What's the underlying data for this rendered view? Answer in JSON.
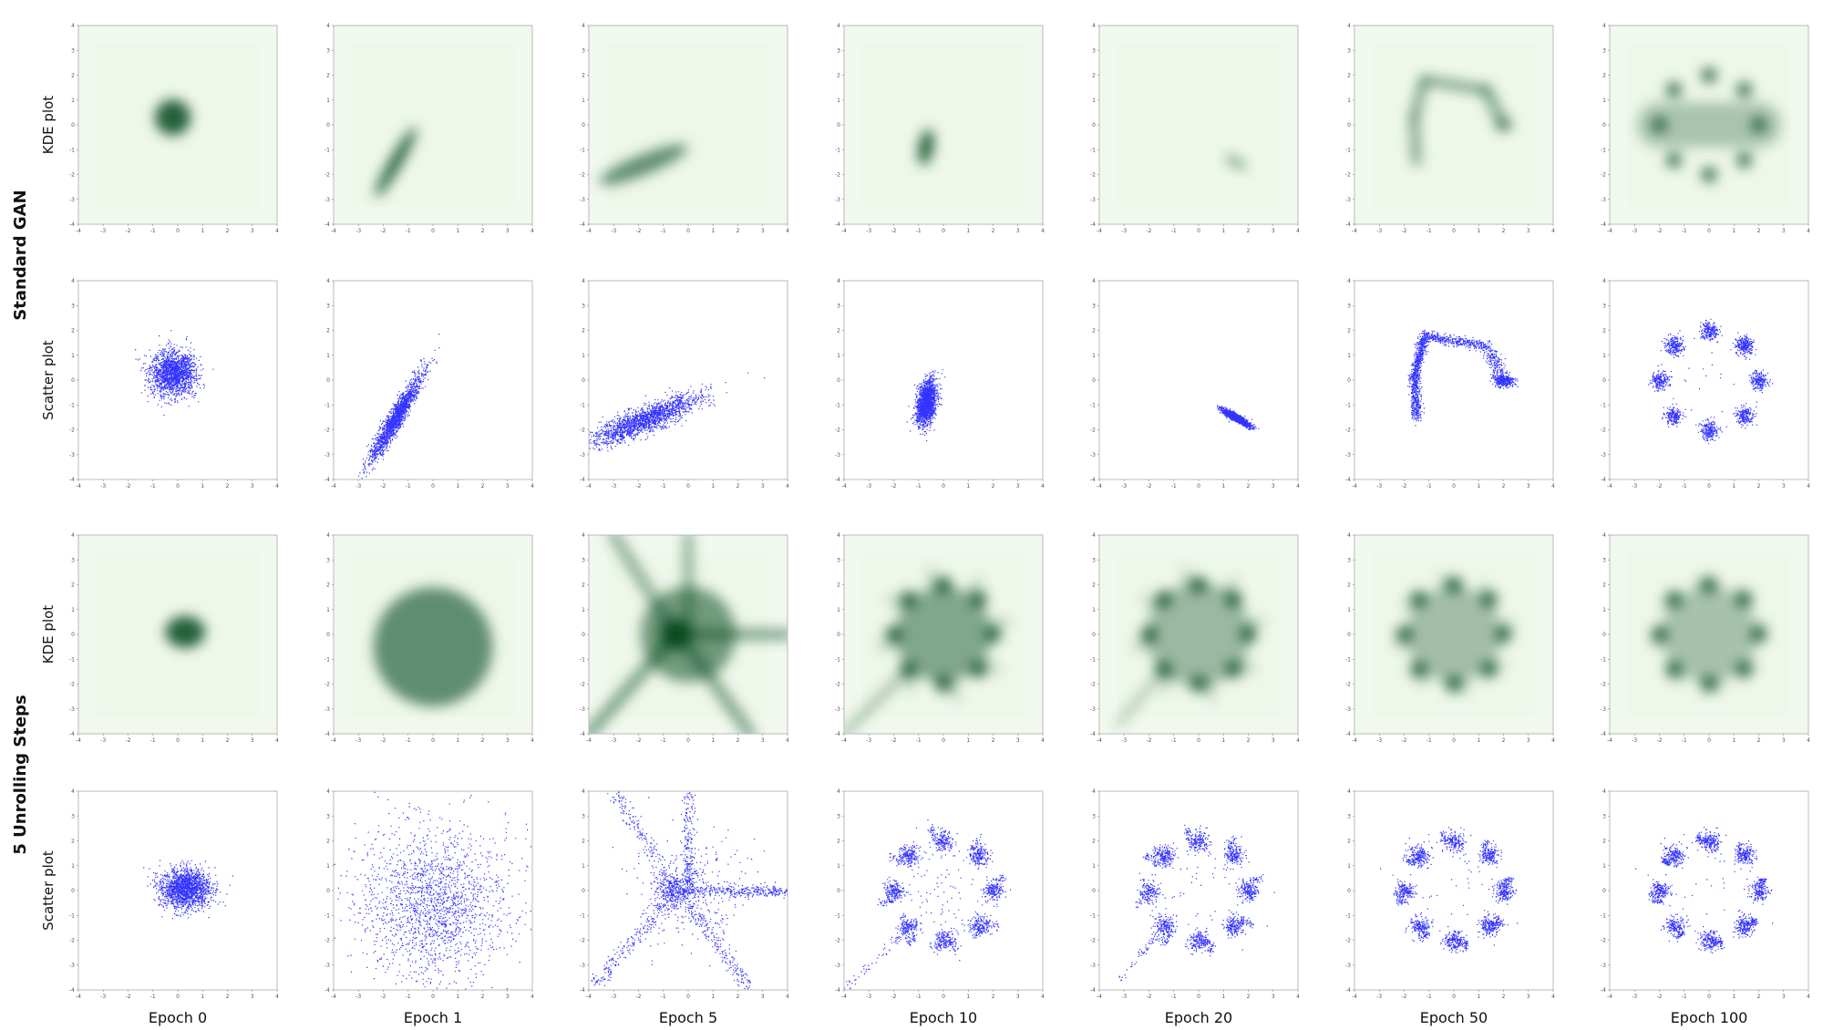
{
  "chart_data": {
    "type": "scatter",
    "rows": [
      {
        "title": "Standard GAN",
        "plots": [
          "KDE plot",
          "Scatter plot"
        ]
      },
      {
        "title": "5 Unrolling Steps",
        "plots": [
          "KDE plot",
          "Scatter plot"
        ]
      }
    ],
    "columns": [
      "Epoch 0",
      "Epoch 1",
      "Epoch 5",
      "Epoch 10",
      "Epoch 20",
      "Epoch 50",
      "Epoch 100"
    ],
    "xlim": [
      -4,
      4
    ],
    "ylim": [
      -4,
      4
    ],
    "xticks": [
      -4,
      -3,
      -2,
      -1,
      0,
      1,
      2,
      3,
      4
    ],
    "yticks": [
      -4,
      -3,
      -2,
      -1,
      0,
      1,
      2,
      3,
      4
    ],
    "kde_color": "#00441b",
    "scatter_color": "#0000ff"
  }
}
